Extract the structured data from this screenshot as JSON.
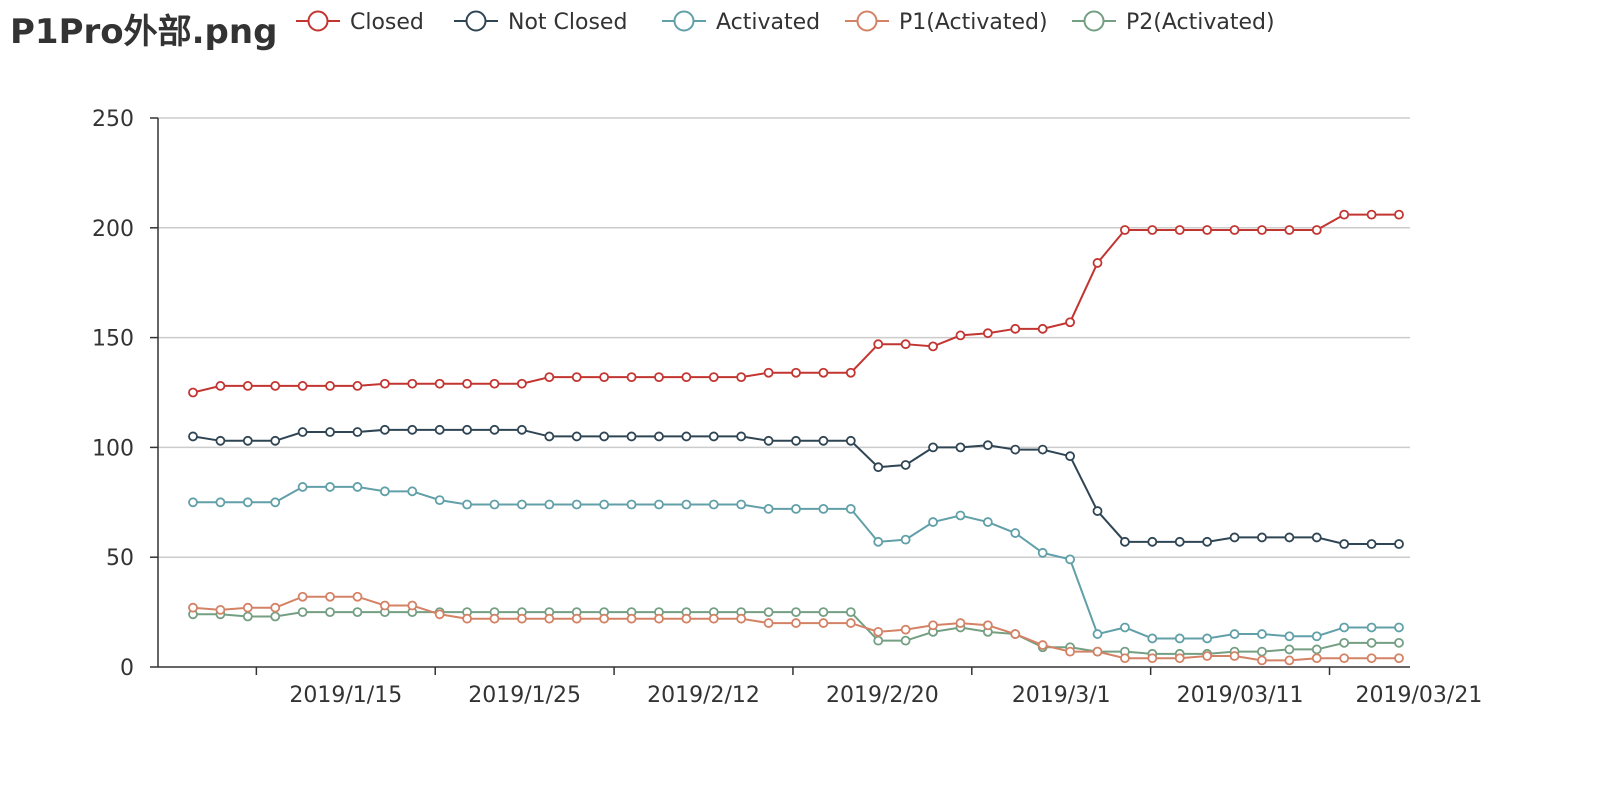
{
  "chart_data": {
    "type": "line",
    "title": "P1Pro外部.png",
    "x_tick_labels": [
      "2019/1/15",
      "2019/1/25",
      "2019/2/12",
      "2019/2/20",
      "2019/3/1",
      "2019/03/11",
      "2019/03/21"
    ],
    "ylim": [
      0,
      250
    ],
    "y_ticks": [
      0,
      50,
      100,
      150,
      200,
      250
    ],
    "grid": true,
    "legend_position": "top",
    "series": [
      {
        "name": "Closed",
        "color": "#c23531",
        "values": [
          125,
          128,
          128,
          128,
          128,
          128,
          128,
          129,
          129,
          129,
          129,
          129,
          129,
          132,
          132,
          132,
          132,
          132,
          132,
          132,
          132,
          134,
          134,
          134,
          134,
          147,
          147,
          146,
          151,
          152,
          154,
          154,
          157,
          184,
          199,
          199,
          199,
          199,
          199,
          199,
          199,
          199,
          206,
          206,
          206
        ]
      },
      {
        "name": "Not Closed",
        "color": "#2f4554",
        "values": [
          105,
          103,
          103,
          103,
          107,
          107,
          107,
          108,
          108,
          108,
          108,
          108,
          108,
          105,
          105,
          105,
          105,
          105,
          105,
          105,
          105,
          103,
          103,
          103,
          103,
          91,
          92,
          100,
          100,
          101,
          99,
          99,
          96,
          71,
          57,
          57,
          57,
          57,
          59,
          59,
          59,
          59,
          56,
          56,
          56
        ]
      },
      {
        "name": "Activated",
        "color": "#61a0a8",
        "values": [
          75,
          75,
          75,
          75,
          82,
          82,
          82,
          80,
          80,
          76,
          74,
          74,
          74,
          74,
          74,
          74,
          74,
          74,
          74,
          74,
          74,
          72,
          72,
          72,
          72,
          57,
          58,
          66,
          69,
          66,
          61,
          52,
          49,
          15,
          18,
          13,
          13,
          13,
          15,
          15,
          14,
          14,
          18,
          18,
          18
        ]
      },
      {
        "name": "P1(Activated)",
        "color": "#d48265",
        "values": [
          27,
          26,
          27,
          27,
          32,
          32,
          32,
          28,
          28,
          24,
          22,
          22,
          22,
          22,
          22,
          22,
          22,
          22,
          22,
          22,
          22,
          20,
          20,
          20,
          20,
          16,
          17,
          19,
          20,
          19,
          15,
          10,
          7,
          7,
          4,
          4,
          4,
          5,
          5,
          3,
          3,
          4,
          4,
          4,
          4
        ]
      },
      {
        "name": "P2(Activated)",
        "color": "#749f83",
        "values": [
          24,
          24,
          23,
          23,
          25,
          25,
          25,
          25,
          25,
          25,
          25,
          25,
          25,
          25,
          25,
          25,
          25,
          25,
          25,
          25,
          25,
          25,
          25,
          25,
          25,
          12,
          12,
          16,
          18,
          16,
          15,
          9,
          9,
          7,
          7,
          6,
          6,
          6,
          7,
          7,
          8,
          8,
          11,
          11,
          11
        ]
      }
    ]
  }
}
